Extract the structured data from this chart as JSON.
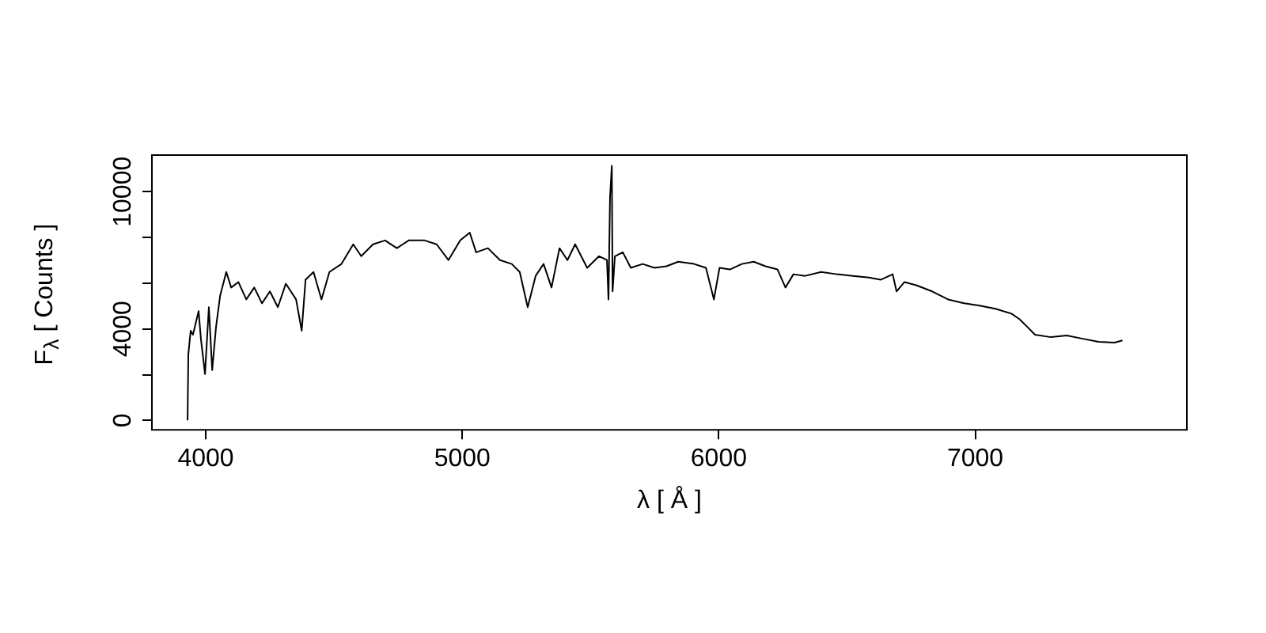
{
  "chart_data": {
    "type": "line",
    "xlabel": "λ [ Å ]",
    "ylabel": "F$_{λ}$ [ Counts ]",
    "xlim": [
      3790,
      7825
    ],
    "ylim": [
      -410,
      11600
    ],
    "xticks": [
      4000,
      5000,
      6000,
      7000
    ],
    "yticks": [
      0,
      {
        "value": 2000,
        "label": null
      },
      4000,
      {
        "value": 6000,
        "label": null
      },
      {
        "value": 8000,
        "label": null
      },
      10000
    ],
    "marker": "none",
    "series": [
      {
        "color": "#000000",
        "x": [
          3929,
          3932,
          3941,
          3950,
          3972,
          3981,
          3997,
          4012,
          4025,
          4040,
          4056,
          4080,
          4099,
          4127,
          4158,
          4189,
          4219,
          4250,
          4281,
          4312,
          4352,
          4374,
          4389,
          4420,
          4451,
          4482,
          4529,
          4575,
          4606,
          4652,
          4699,
          4745,
          4791,
          4853,
          4900,
          4946,
          4992,
          5029,
          5054,
          5100,
          5147,
          5193,
          5224,
          5255,
          5286,
          5317,
          5348,
          5379,
          5410,
          5440,
          5487,
          5533,
          5564,
          5570,
          5576,
          5583,
          5586,
          5595,
          5626,
          5657,
          5703,
          5750,
          5796,
          5842,
          5904,
          5950,
          5981,
          6003,
          6043,
          6090,
          6136,
          6182,
          6229,
          6260,
          6291,
          6337,
          6399,
          6461,
          6523,
          6585,
          6631,
          6678,
          6693,
          6724,
          6770,
          6832,
          6894,
          6956,
          7017,
          7079,
          7141,
          7172,
          7203,
          7233,
          7295,
          7357,
          7419,
          7481,
          7543,
          7574
        ],
        "values": [
          0,
          2890,
          3920,
          3750,
          4780,
          3570,
          2030,
          4950,
          2200,
          4090,
          5460,
          6490,
          5810,
          6050,
          5290,
          5810,
          5120,
          5640,
          4950,
          5980,
          5290,
          3920,
          6150,
          6490,
          5290,
          6490,
          6840,
          7700,
          7180,
          7700,
          7870,
          7530,
          7870,
          7870,
          7700,
          7010,
          7870,
          8210,
          7350,
          7530,
          7010,
          6840,
          6490,
          4950,
          6320,
          6840,
          5810,
          7530,
          7010,
          7700,
          6670,
          7180,
          7010,
          5290,
          9760,
          11130,
          5640,
          7180,
          7350,
          6670,
          6840,
          6670,
          6740,
          6940,
          6840,
          6670,
          5290,
          6670,
          6600,
          6840,
          6940,
          6740,
          6600,
          5810,
          6390,
          6320,
          6490,
          6390,
          6320,
          6250,
          6150,
          6390,
          5640,
          6050,
          5910,
          5640,
          5290,
          5120,
          5020,
          4880,
          4670,
          4430,
          4090,
          3750,
          3640,
          3710,
          3570,
          3440,
          3400,
          3500
        ]
      }
    ]
  }
}
